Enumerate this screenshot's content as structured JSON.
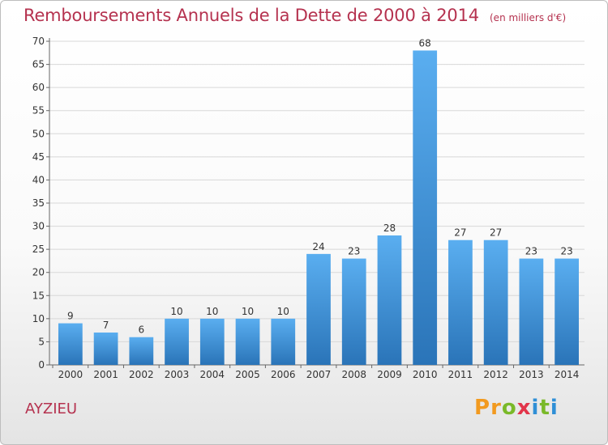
{
  "chart_data": {
    "type": "bar",
    "title": "Remboursements Annuels de la Dette de 2000 à 2014",
    "unit": "(en milliers d'€)",
    "categories": [
      "2000",
      "2001",
      "2002",
      "2003",
      "2004",
      "2005",
      "2006",
      "2007",
      "2008",
      "2009",
      "2010",
      "2011",
      "2012",
      "2013",
      "2014"
    ],
    "values": [
      9,
      7,
      6,
      10,
      10,
      10,
      10,
      24,
      23,
      28,
      68,
      27,
      27,
      23,
      23
    ],
    "ylim": [
      0,
      70
    ],
    "yticks": [
      0,
      5,
      10,
      15,
      20,
      25,
      30,
      35,
      40,
      45,
      50,
      55,
      60,
      65,
      70
    ],
    "grid": true,
    "bar_color": "#3a8fd6"
  },
  "commune": "AYZIEU",
  "logo": {
    "text": "Proxiti",
    "letters": [
      {
        "ch": "P",
        "color": "#f29a1f"
      },
      {
        "ch": "r",
        "color": "#f29a1f"
      },
      {
        "ch": "o",
        "color": "#7ab929"
      },
      {
        "ch": "x",
        "color": "#e2354a"
      },
      {
        "ch": "i",
        "color": "#2f8fd6"
      },
      {
        "ch": "t",
        "color": "#7ab929"
      },
      {
        "ch": "i",
        "color": "#2f8fd6"
      }
    ]
  }
}
